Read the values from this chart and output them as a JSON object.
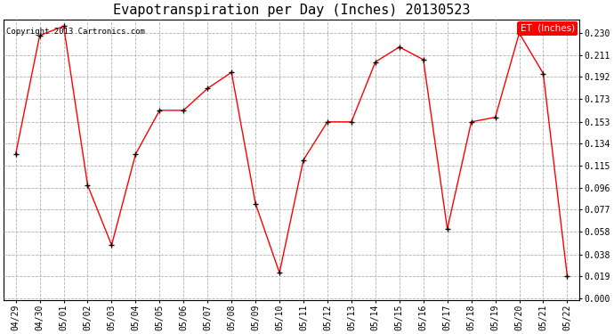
{
  "title": "Evapotranspiration per Day (Inches) 20130523",
  "copyright": "Copyright 2013 Cartronics.com",
  "legend_label": "ET  (Inches)",
  "dates": [
    "04/29",
    "04/30",
    "05/01",
    "05/02",
    "05/03",
    "05/04",
    "05/05",
    "05/06",
    "05/07",
    "05/08",
    "05/09",
    "05/10",
    "05/11",
    "05/12",
    "05/13",
    "05/14",
    "05/15",
    "05/16",
    "05/17",
    "05/18",
    "05/19",
    "05/20",
    "05/21",
    "05/22"
  ],
  "values": [
    0.125,
    0.228,
    0.236,
    0.098,
    0.046,
    0.125,
    0.163,
    0.163,
    0.182,
    0.196,
    0.082,
    0.022,
    0.12,
    0.153,
    0.153,
    0.205,
    0.218,
    0.207,
    0.06,
    0.153,
    0.157,
    0.23,
    0.195,
    0.019
  ],
  "ylim_min": -0.002,
  "ylim_max": 0.242,
  "yticks": [
    0.0,
    0.019,
    0.038,
    0.058,
    0.077,
    0.096,
    0.115,
    0.134,
    0.153,
    0.173,
    0.192,
    0.211,
    0.23
  ],
  "line_color": "red",
  "marker_color": "black",
  "background_color": "white",
  "grid_color": "#b0b0b0",
  "legend_bg": "red",
  "legend_fg": "white",
  "title_fontsize": 11,
  "copyright_fontsize": 6.5,
  "tick_fontsize": 7,
  "legend_fontsize": 7.5
}
